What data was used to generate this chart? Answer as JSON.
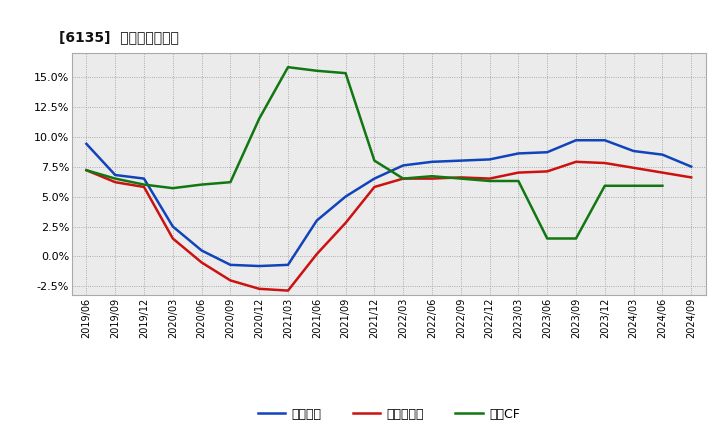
{
  "title": "[6135]  マージンの推移",
  "x_labels": [
    "2019/06",
    "2019/09",
    "2019/12",
    "2020/03",
    "2020/06",
    "2020/09",
    "2020/12",
    "2021/03",
    "2021/06",
    "2021/09",
    "2021/12",
    "2022/03",
    "2022/06",
    "2022/09",
    "2022/12",
    "2023/03",
    "2023/06",
    "2023/09",
    "2023/12",
    "2024/03",
    "2024/06",
    "2024/09"
  ],
  "keijo_rieki": [
    9.4,
    6.8,
    6.5,
    2.5,
    0.5,
    -0.7,
    -0.8,
    -0.7,
    3.0,
    5.0,
    6.5,
    7.6,
    7.9,
    8.0,
    8.1,
    8.6,
    8.7,
    9.7,
    9.7,
    8.8,
    8.5,
    7.5
  ],
  "touki_junrieki": [
    7.2,
    6.2,
    5.8,
    1.5,
    -0.5,
    -2.0,
    -2.7,
    -2.85,
    0.2,
    2.8,
    5.8,
    6.5,
    6.5,
    6.6,
    6.5,
    7.0,
    7.1,
    7.9,
    7.8,
    7.4,
    7.0,
    6.6
  ],
  "eigyo_cf": [
    7.2,
    6.5,
    6.0,
    5.7,
    6.0,
    6.2,
    11.5,
    15.8,
    15.5,
    15.3,
    8.0,
    6.5,
    6.7,
    6.5,
    6.3,
    6.3,
    1.5,
    1.5,
    5.9,
    5.9,
    5.9,
    null
  ],
  "keijo_color": "#1144bb",
  "touki_color": "#cc1111",
  "eigyo_color": "#117711",
  "ylim": [
    -3.2,
    17.0
  ],
  "yticks": [
    -2.5,
    0.0,
    2.5,
    5.0,
    7.5,
    10.0,
    12.5,
    15.0
  ],
  "legend_labels": [
    "経常利益",
    "当期純利益",
    "営業CF"
  ],
  "bg_color": "#ffffff",
  "plot_bg_color": "#ebebeb"
}
